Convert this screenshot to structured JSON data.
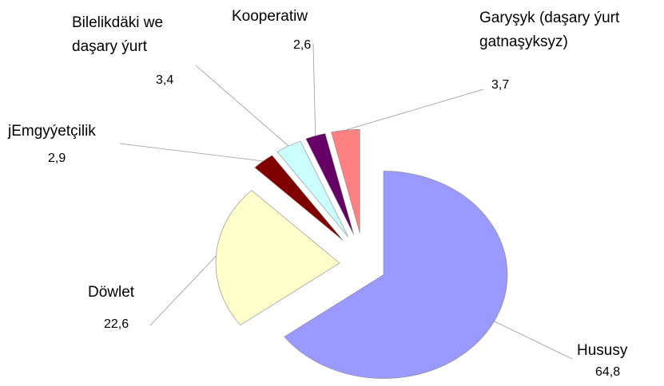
{
  "chart_data": {
    "type": "pie",
    "categories": [
      "Hususy",
      "Döwlet",
      "jEmgyýetçilik",
      "Bilelikdäki we daşary ýurt",
      "Kooperatiw",
      "Garyşyk (daşary ýurt gatnaşyksyz)"
    ],
    "values": [
      64.8,
      22.6,
      2.9,
      3.4,
      2.6,
      3.7
    ],
    "value_labels": [
      "64,8",
      "22,6",
      "2,9",
      "3,4",
      "2,6",
      "3,7"
    ],
    "colors": [
      "#9999ff",
      "#ffffcc",
      "#800000",
      "#ccffff",
      "#660066",
      "#ff8080"
    ]
  }
}
